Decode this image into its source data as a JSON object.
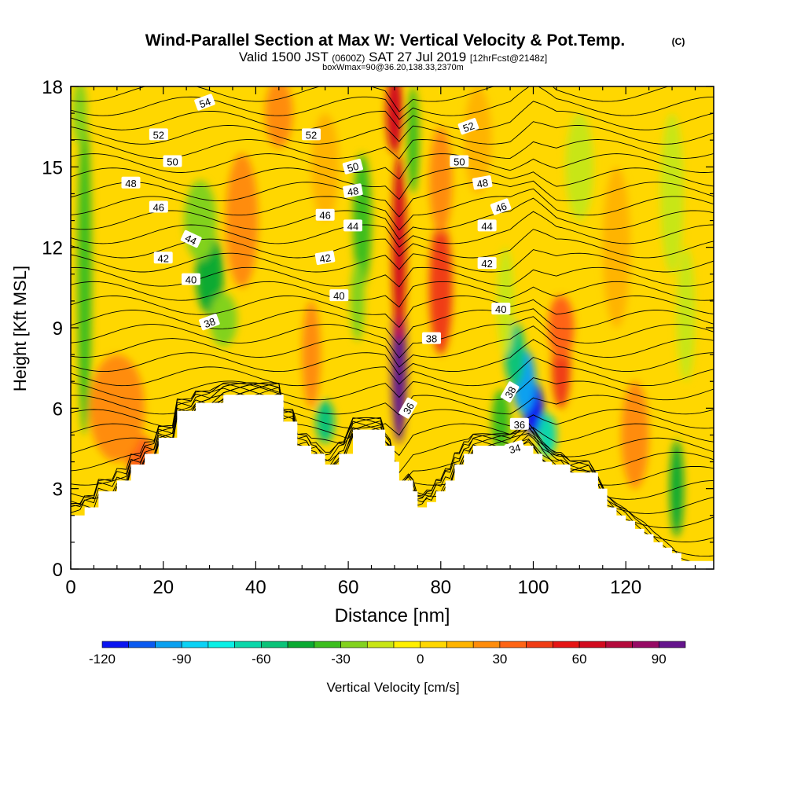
{
  "header": {
    "title": "Wind-Parallel Section at Max W: Vertical Velocity & Pot.Temp.",
    "copyright": "(C)",
    "valid_prefix": "Valid 1500 JST",
    "valid_zulu": "(0600Z)",
    "valid_date": "SAT 27 Jul 2019",
    "forecast": "[12hrFcst@2148z]",
    "box_info": "boxWmax=90@36.20,138.33,2370m"
  },
  "chart_data": {
    "type": "heatmap",
    "xlabel": "Distance [nm]",
    "ylabel": "Height [Kft MSL]",
    "xlim": [
      0,
      139
    ],
    "ylim": [
      0,
      18
    ],
    "x_ticks": [
      0,
      20,
      40,
      60,
      80,
      100,
      120
    ],
    "y_ticks": [
      0,
      3,
      6,
      9,
      12,
      15,
      18
    ],
    "grid": false,
    "colorbar": {
      "label": "Vertical Velocity [cm/s]",
      "ticks": [
        -120,
        -90,
        -60,
        -30,
        0,
        30,
        60,
        90
      ],
      "levels": [
        -120,
        -110,
        -100,
        -90,
        -80,
        -70,
        -60,
        -50,
        -40,
        -30,
        -20,
        -10,
        0,
        10,
        20,
        30,
        40,
        50,
        60,
        70,
        80,
        90,
        100
      ],
      "colors": [
        "#0a14f0",
        "#0a5af0",
        "#0aa0f0",
        "#0ad2f5",
        "#0af0e6",
        "#0ad7aa",
        "#0ac378",
        "#0aaa32",
        "#3cbe1e",
        "#82d21e",
        "#c8e614",
        "#fff000",
        "#ffd700",
        "#ffb400",
        "#ff8c0a",
        "#ff6414",
        "#f03c14",
        "#e61414",
        "#d20a1e",
        "#b40a3c",
        "#960a64",
        "#64148c"
      ]
    },
    "terrain": {
      "x": [
        0,
        2,
        3,
        5,
        6,
        9,
        10,
        12,
        13,
        15,
        16,
        18,
        19,
        22,
        23,
        26,
        27,
        30,
        33,
        36,
        39,
        45,
        46,
        48,
        49,
        50,
        51,
        52,
        53,
        55,
        56,
        58,
        59,
        61,
        62,
        64,
        65,
        67,
        68,
        69,
        70,
        71,
        72,
        73,
        74,
        75,
        76,
        77,
        78,
        79,
        80,
        81,
        82,
        83,
        84,
        85,
        86,
        87,
        88,
        89,
        90,
        92,
        94,
        96,
        98,
        99,
        100,
        102,
        104,
        106,
        108,
        110,
        112,
        114,
        116,
        118,
        120,
        122,
        124,
        126,
        128,
        130,
        132,
        134,
        136,
        139
      ],
      "y": [
        2.0,
        2.0,
        2.3,
        2.3,
        2.9,
        2.9,
        3.3,
        3.3,
        3.9,
        3.9,
        4.3,
        4.3,
        4.9,
        4.9,
        5.9,
        5.9,
        6.2,
        6.2,
        6.5,
        6.5,
        6.5,
        6.5,
        5.5,
        5.5,
        4.6,
        4.6,
        4.6,
        4.3,
        4.3,
        3.9,
        3.9,
        4.3,
        4.3,
        5.2,
        5.2,
        5.2,
        5.2,
        5.2,
        4.6,
        4.6,
        4.0,
        3.3,
        3.3,
        3.3,
        2.9,
        2.3,
        2.3,
        2.5,
        2.5,
        2.9,
        2.9,
        3.3,
        3.3,
        3.9,
        3.9,
        4.3,
        4.3,
        4.6,
        4.6,
        4.6,
        4.6,
        4.6,
        4.6,
        4.6,
        4.6,
        4.6,
        4.3,
        4.0,
        3.9,
        3.9,
        3.6,
        3.6,
        3.6,
        3.0,
        2.3,
        2.0,
        1.8,
        1.5,
        1.3,
        1.0,
        0.8,
        0.6,
        0.3,
        0.3,
        0.3,
        0.3
      ]
    },
    "w_cells": [
      {
        "x": 71,
        "y": 7.5,
        "sx": 1.6,
        "sy": 2.8,
        "value": 92
      },
      {
        "x": 71,
        "y": 12.0,
        "sx": 1.5,
        "sy": 3.5,
        "value": 60
      },
      {
        "x": 70,
        "y": 17.0,
        "sx": 1.8,
        "sy": 1.5,
        "value": 60
      },
      {
        "x": 80,
        "y": 10.5,
        "sx": 2.5,
        "sy": 2.5,
        "value": 48
      },
      {
        "x": 80,
        "y": 14.5,
        "sx": 2.5,
        "sy": 2.0,
        "value": 25
      },
      {
        "x": 106,
        "y": 7.5,
        "sx": 2.0,
        "sy": 1.5,
        "value": 45
      },
      {
        "x": 106,
        "y": 9.0,
        "sx": 2.8,
        "sy": 1.2,
        "value": 30
      },
      {
        "x": 100,
        "y": 6.0,
        "sx": 2.2,
        "sy": 1.0,
        "value": -115
      },
      {
        "x": 98,
        "y": 7.0,
        "sx": 2.5,
        "sy": 1.2,
        "value": -95
      },
      {
        "x": 96,
        "y": 8.0,
        "sx": 2.2,
        "sy": 1.2,
        "value": -60
      },
      {
        "x": 103,
        "y": 5.0,
        "sx": 2.0,
        "sy": 0.8,
        "value": -70
      },
      {
        "x": 93,
        "y": 5.5,
        "sx": 2.0,
        "sy": 1.2,
        "value": -40
      },
      {
        "x": 94,
        "y": 10.0,
        "sx": 1.8,
        "sy": 2.0,
        "value": -20
      },
      {
        "x": 30,
        "y": 11.0,
        "sx": 3.0,
        "sy": 1.5,
        "value": -45
      },
      {
        "x": 28,
        "y": 13.0,
        "sx": 3.5,
        "sy": 1.5,
        "value": -30
      },
      {
        "x": 33,
        "y": 9.3,
        "sx": 3.0,
        "sy": 1.0,
        "value": -25
      },
      {
        "x": 3,
        "y": 11.0,
        "sx": 1.5,
        "sy": 6.0,
        "value": -40
      },
      {
        "x": 2,
        "y": 17.0,
        "sx": 1.5,
        "sy": 1.2,
        "value": -25
      },
      {
        "x": 63,
        "y": 13.0,
        "sx": 2.0,
        "sy": 2.5,
        "value": -38
      },
      {
        "x": 62,
        "y": 10.0,
        "sx": 1.5,
        "sy": 1.5,
        "value": -28
      },
      {
        "x": 55,
        "y": 5.5,
        "sx": 2.0,
        "sy": 0.8,
        "value": -55
      },
      {
        "x": 74,
        "y": 16.0,
        "sx": 1.3,
        "sy": 2.0,
        "value": -35
      },
      {
        "x": 131,
        "y": 3.0,
        "sx": 1.5,
        "sy": 1.8,
        "value": -45
      },
      {
        "x": 130,
        "y": 14.0,
        "sx": 2.5,
        "sy": 3.0,
        "value": -15
      },
      {
        "x": 133,
        "y": 9.5,
        "sx": 2.0,
        "sy": 2.5,
        "value": -18
      },
      {
        "x": 110,
        "y": 15.0,
        "sx": 3.0,
        "sy": 2.0,
        "value": -12
      },
      {
        "x": 15,
        "y": 4.2,
        "sx": 3.0,
        "sy": 0.8,
        "value": 38
      },
      {
        "x": 10,
        "y": 6.0,
        "sx": 6.0,
        "sy": 2.0,
        "value": 25
      },
      {
        "x": 45,
        "y": 17.0,
        "sx": 3.0,
        "sy": 1.3,
        "value": 22
      },
      {
        "x": 37,
        "y": 13.0,
        "sx": 3.5,
        "sy": 2.5,
        "value": 20
      },
      {
        "x": 55,
        "y": 15.0,
        "sx": 3.0,
        "sy": 2.0,
        "value": 18
      },
      {
        "x": 52,
        "y": 8.0,
        "sx": 2.0,
        "sy": 2.0,
        "value": 22
      },
      {
        "x": 122,
        "y": 5.0,
        "sx": 3.0,
        "sy": 2.0,
        "value": 25
      },
      {
        "x": 118,
        "y": 12.0,
        "sx": 3.0,
        "sy": 3.0,
        "value": 15
      },
      {
        "x": 88,
        "y": 16.0,
        "sx": 3.0,
        "sy": 2.0,
        "value": 15
      }
    ],
    "theta_labels": [
      {
        "x": 30,
        "y": 9.2,
        "label": "38",
        "angle": -20
      },
      {
        "x": 26,
        "y": 10.8,
        "label": "40",
        "angle": 0
      },
      {
        "x": 20,
        "y": 11.6,
        "label": "42",
        "angle": 0
      },
      {
        "x": 26,
        "y": 12.3,
        "label": "44",
        "angle": 25
      },
      {
        "x": 19,
        "y": 13.5,
        "label": "46",
        "angle": 0
      },
      {
        "x": 13,
        "y": 14.4,
        "label": "48",
        "angle": 0
      },
      {
        "x": 22,
        "y": 15.2,
        "label": "50",
        "angle": 0
      },
      {
        "x": 19,
        "y": 16.2,
        "label": "52",
        "angle": 0
      },
      {
        "x": 29,
        "y": 17.4,
        "label": "54",
        "angle": -20
      },
      {
        "x": 52,
        "y": 16.2,
        "label": "52",
        "angle": 0
      },
      {
        "x": 55,
        "y": 13.2,
        "label": "46",
        "angle": 0
      },
      {
        "x": 55,
        "y": 11.6,
        "label": "42",
        "angle": -10
      },
      {
        "x": 58,
        "y": 10.2,
        "label": "40",
        "angle": 0
      },
      {
        "x": 61,
        "y": 15.0,
        "label": "50",
        "angle": -15
      },
      {
        "x": 61,
        "y": 14.1,
        "label": "48",
        "angle": -10
      },
      {
        "x": 61,
        "y": 12.8,
        "label": "44",
        "angle": 0
      },
      {
        "x": 73,
        "y": 6.0,
        "label": "36",
        "angle": -60
      },
      {
        "x": 78,
        "y": 8.6,
        "label": "38",
        "angle": 0
      },
      {
        "x": 90,
        "y": 12.8,
        "label": "44",
        "angle": 0
      },
      {
        "x": 86,
        "y": 16.5,
        "label": "52",
        "angle": -20
      },
      {
        "x": 84,
        "y": 15.2,
        "label": "50",
        "angle": 0
      },
      {
        "x": 89,
        "y": 14.4,
        "label": "48",
        "angle": -10
      },
      {
        "x": 93,
        "y": 13.5,
        "label": "46",
        "angle": -20
      },
      {
        "x": 90,
        "y": 11.4,
        "label": "42",
        "angle": 0
      },
      {
        "x": 93,
        "y": 9.7,
        "label": "40",
        "angle": 0
      },
      {
        "x": 95,
        "y": 6.6,
        "label": "38",
        "angle": -60
      },
      {
        "x": 97,
        "y": 5.4,
        "label": "36",
        "angle": 0
      },
      {
        "x": 96,
        "y": 4.5,
        "label": "34",
        "angle": -15
      }
    ]
  }
}
